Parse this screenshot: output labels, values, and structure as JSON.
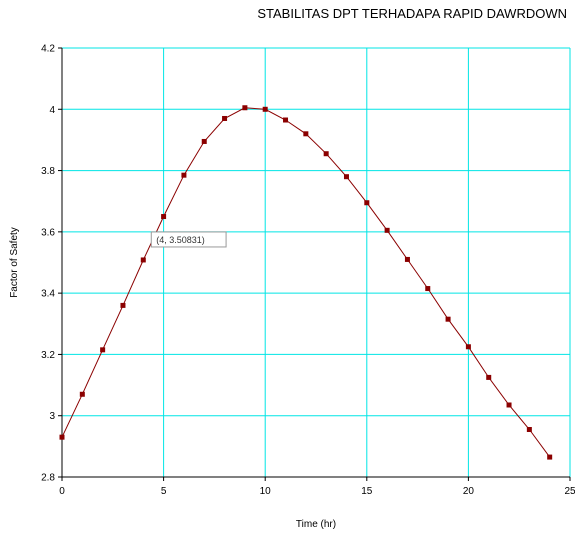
{
  "chart_data": {
    "type": "line",
    "title": "STABILITAS DPT TERHADAPA RAPID DAWRDOWN",
    "xlabel": "Time (hr)",
    "ylabel": "Factor of Safety",
    "xlim": [
      0,
      25
    ],
    "ylim": [
      2.8,
      4.2
    ],
    "xticks": [
      "0",
      "5",
      "10",
      "15",
      "20",
      "25"
    ],
    "yticks": [
      "2.8",
      "3",
      "3.2",
      "3.4",
      "3.6",
      "3.8",
      "4",
      "4.2"
    ],
    "grid": true,
    "series": [
      {
        "x": [
          0,
          1,
          2,
          3,
          4,
          5,
          6,
          7,
          8,
          9,
          10,
          11,
          12,
          13,
          14,
          15,
          16,
          17,
          18,
          19,
          20,
          21,
          22,
          23,
          24
        ],
        "values": [
          2.93,
          3.07,
          3.215,
          3.36,
          3.50831,
          3.65,
          3.785,
          3.895,
          3.97,
          4.005,
          4.0,
          3.965,
          3.92,
          3.855,
          3.78,
          3.695,
          3.605,
          3.51,
          3.415,
          3.315,
          3.225,
          3.125,
          3.035,
          2.955,
          2.865
        ]
      }
    ],
    "tooltip": {
      "text": "(4, 3.50831)"
    },
    "colors": {
      "grid": "#00e5e5",
      "line": "#8b0000",
      "marker": "#8b0000"
    }
  }
}
